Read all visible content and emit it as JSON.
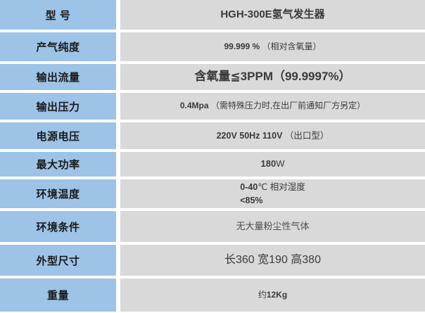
{
  "colors": {
    "label_bg": "#9dc3e6",
    "value_bg": "#d9d9d9",
    "label_text": "#1a1a1a",
    "value_text": "#3a3a3a"
  },
  "table": {
    "rows": [
      {
        "key": "model",
        "label": "型 号",
        "segments": [
          {
            "text": "HGH-300E氢气发生器",
            "bold": true
          }
        ]
      },
      {
        "key": "gas-purity",
        "label": "产气纯度",
        "segments": [
          {
            "text": "99.999 % ",
            "bold": true
          },
          {
            "text": "（相对含氧量）",
            "bold": false
          }
        ]
      },
      {
        "key": "output-flow",
        "label": "输出流量",
        "segments": [
          {
            "text": "含氧量≦3PPM（99.9997%）",
            "bold": true
          }
        ]
      },
      {
        "key": "output-pressure",
        "label": "输出压力",
        "segments": [
          {
            "text": "0.4Mpa ",
            "bold": true
          },
          {
            "text": "（需特殊压力时,在出厂前通知厂方另定）",
            "bold": false
          }
        ]
      },
      {
        "key": "power-voltage",
        "label": "电源电压",
        "segments": [
          {
            "text": "220V 50Hz 110V ",
            "bold": true
          },
          {
            "text": "（出口型）",
            "bold": false
          }
        ]
      },
      {
        "key": "max-power",
        "label": "最大功率",
        "segments": [
          {
            "text": "180",
            "bold": true
          },
          {
            "text": "W",
            "bold": false
          }
        ]
      },
      {
        "key": "ambient-temperature",
        "label": "环境温度",
        "segments": [
          {
            "text": "0-40",
            "bold": true
          },
          {
            "text": "℃ 相对湿度",
            "bold": false
          },
          {
            "br": true
          },
          {
            "text": "<85%",
            "bold": true
          }
        ]
      },
      {
        "key": "ambient-condition",
        "label": "环境条件",
        "segments": [
          {
            "text": "无大量粉尘性气体",
            "bold": false
          }
        ]
      },
      {
        "key": "dimensions",
        "label": "外型尺寸",
        "segments": [
          {
            "text": "长360  宽190 高380",
            "bold": false
          }
        ]
      },
      {
        "key": "weight",
        "label": "重量",
        "segments": [
          {
            "text": "约",
            "bold": false
          },
          {
            "text": "12Kg",
            "bold": true
          }
        ]
      }
    ]
  }
}
